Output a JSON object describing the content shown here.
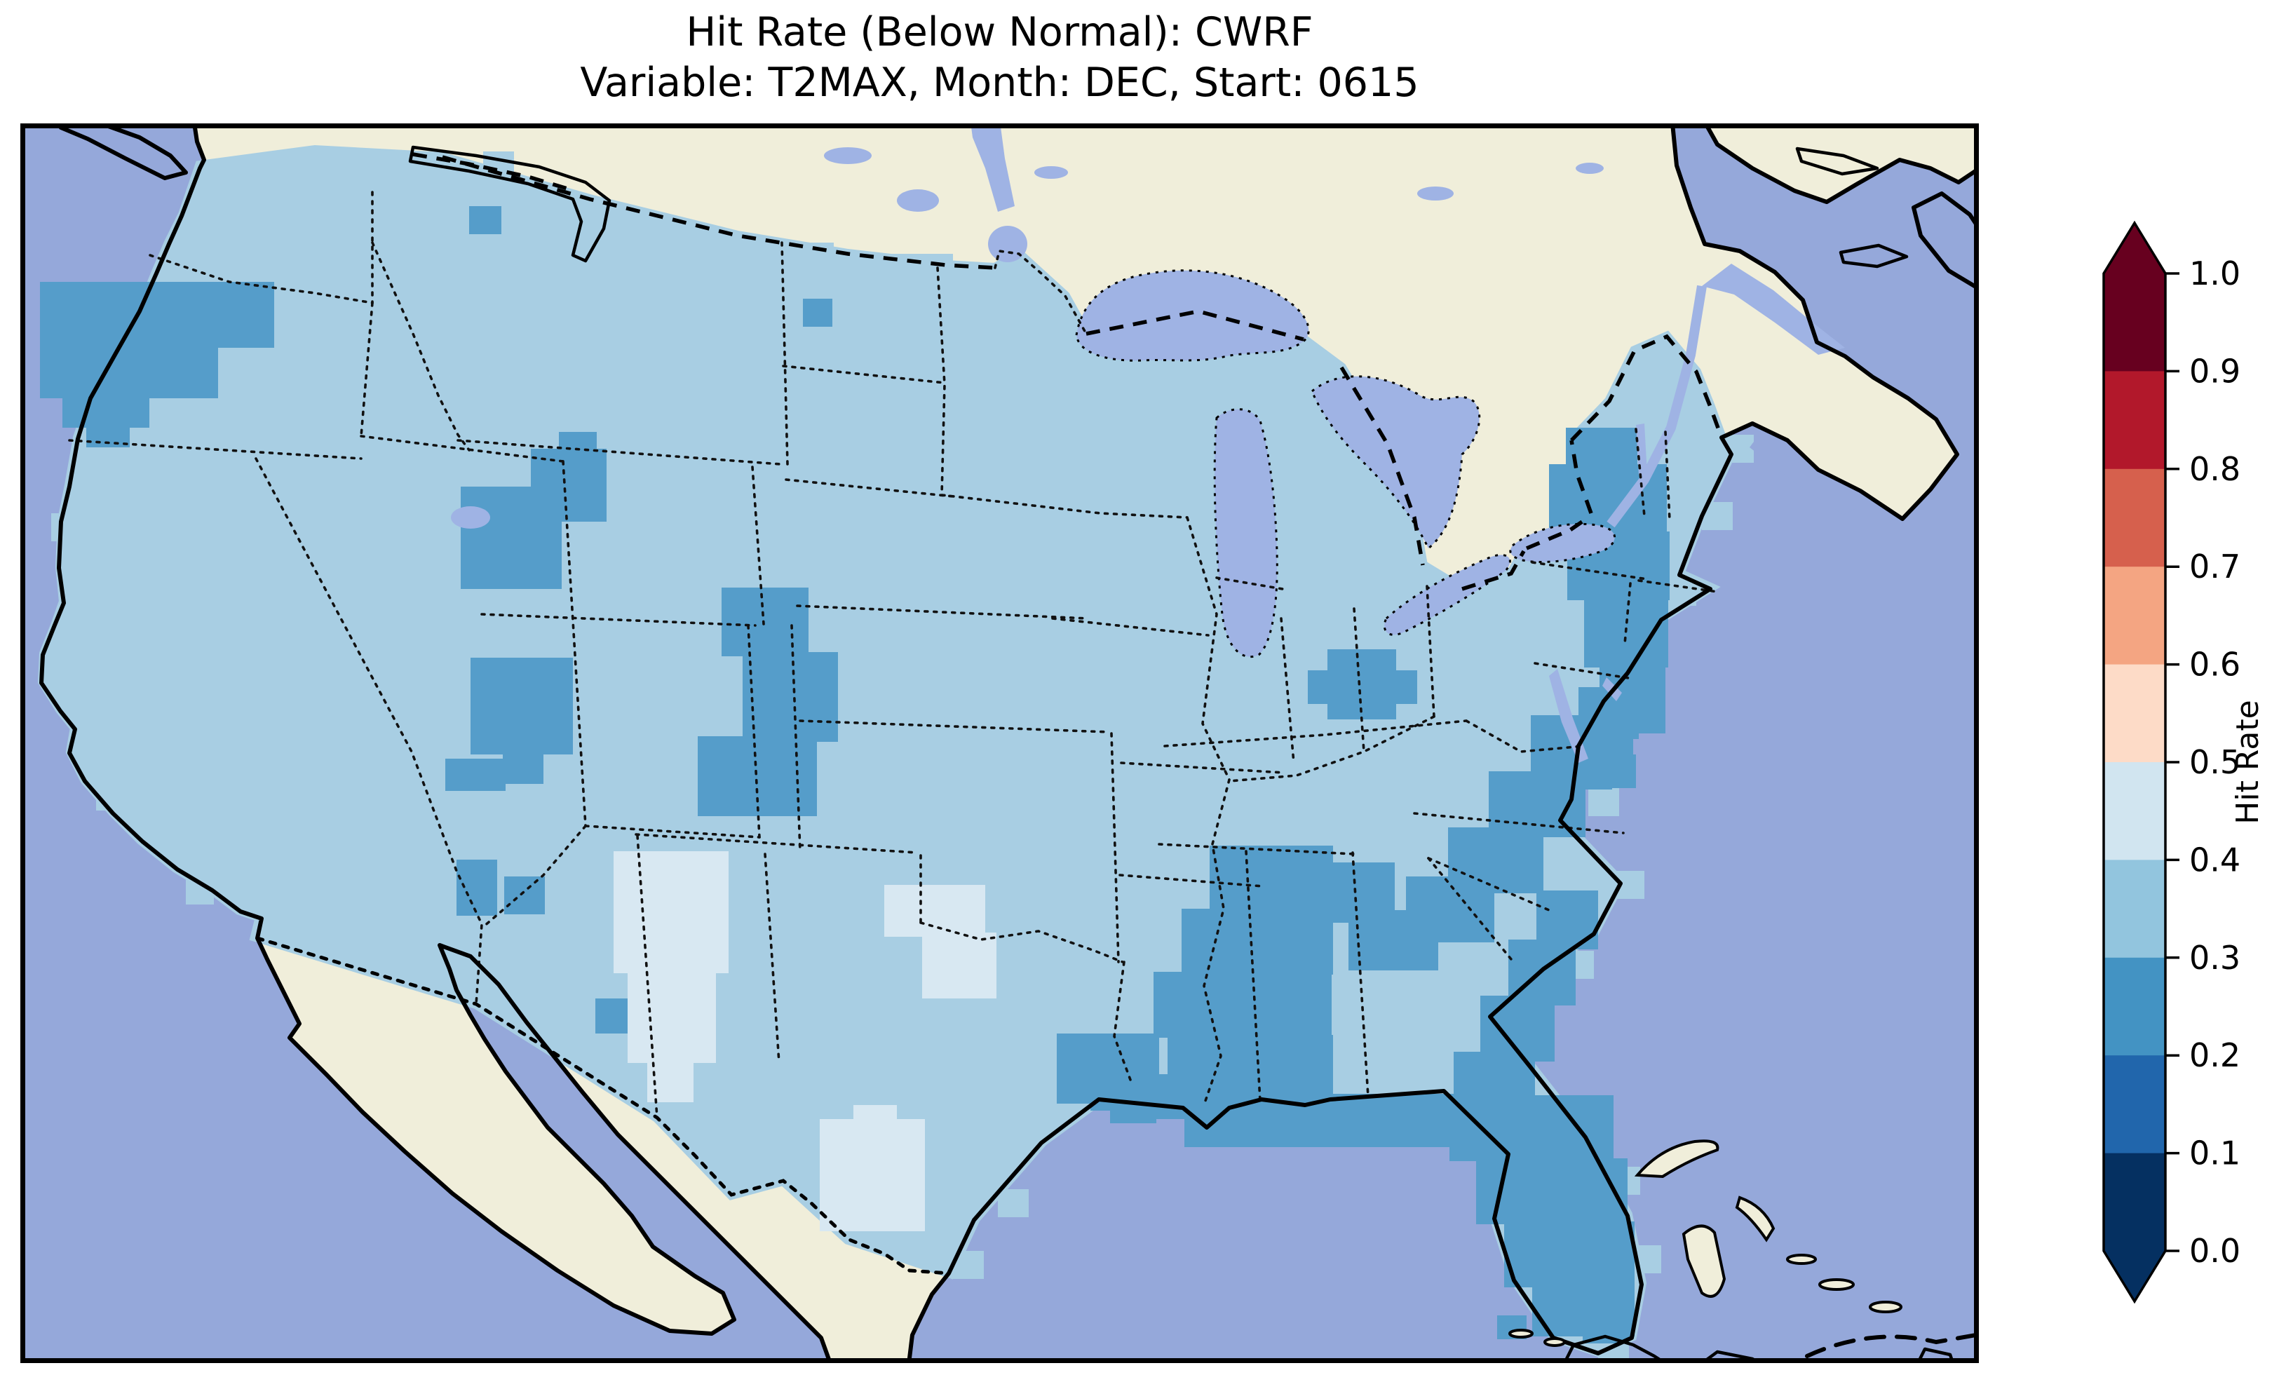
{
  "figure": {
    "title_line1": "Hit Rate (Below Normal): CWRF",
    "title_line2": "Variable: T2MAX, Month: DEC, Start: 0615",
    "background": "#ffffff",
    "text_color": "#000000"
  },
  "colorbar": {
    "label": "Hit Rate",
    "orientation": "vertical",
    "extend": "both",
    "tick_labels": [
      "1.0",
      "0.9",
      "0.8",
      "0.7",
      "0.6",
      "0.5",
      "0.4",
      "0.3",
      "0.2",
      "0.1",
      "0.0"
    ],
    "segments_top_to_bottom": [
      {
        "range": "0.9-1.0",
        "color": "#67001f"
      },
      {
        "range": "0.8-0.9",
        "color": "#b2182b"
      },
      {
        "range": "0.7-0.8",
        "color": "#d6604d"
      },
      {
        "range": "0.6-0.7",
        "color": "#f4a582"
      },
      {
        "range": "0.5-0.6",
        "color": "#fddbc7"
      },
      {
        "range": "0.4-0.5",
        "color": "#d1e5f0"
      },
      {
        "range": "0.3-0.4",
        "color": "#92c5de"
      },
      {
        "range": "0.2-0.3",
        "color": "#4393c3"
      },
      {
        "range": "0.1-0.2",
        "color": "#2166ac"
      },
      {
        "range": "0.0-0.1",
        "color": "#053061"
      }
    ],
    "arrow_over_color": "#67001f",
    "arrow_under_color": "#053061"
  },
  "map": {
    "feature_colors": {
      "ocean": "#95a8da",
      "land": "#f0eeda",
      "lakes": "#9fb3e4",
      "coastline": "#000000",
      "frame": "#000000"
    },
    "cell_colors": {
      "hr_04_05": "#d8e8f2",
      "hr_03_04": "#a8cee3",
      "hr_02_03": "#559dca"
    },
    "patches": [
      {
        "bin": "hr_02_03",
        "rects": [
          [
            28,
            226,
            334,
            94
          ],
          [
            28,
            318,
            254,
            74
          ],
          [
            60,
            390,
            124,
            44
          ],
          [
            94,
            432,
            62,
            30
          ],
          [
            640,
            118,
            46,
            40
          ],
          [
            728,
            464,
            108,
            104
          ],
          [
            768,
            440,
            54,
            28
          ],
          [
            1116,
            250,
            42,
            40
          ],
          [
            628,
            518,
            144,
            146
          ],
          [
            642,
            762,
            146,
            138
          ],
          [
            688,
            898,
            58,
            44
          ],
          [
            606,
            906,
            86,
            46
          ],
          [
            622,
            1050,
            58,
            80
          ],
          [
            1000,
            662,
            124,
            98
          ],
          [
            1030,
            754,
            136,
            128
          ],
          [
            966,
            874,
            170,
            114
          ],
          [
            1108,
            768,
            46,
            90
          ],
          [
            690,
            1074,
            58,
            54
          ],
          [
            820,
            1248,
            56,
            50
          ],
          [
            1864,
            750,
            98,
            100
          ],
          [
            1836,
            780,
            156,
            48
          ],
          [
            2204,
            434,
            102,
            56
          ],
          [
            2180,
            486,
            168,
            100
          ],
          [
            2206,
            582,
            146,
            98
          ],
          [
            2230,
            678,
            120,
            98
          ],
          [
            2252,
            772,
            94,
            98
          ],
          [
            2226,
            864,
            74,
            64
          ],
          [
            2210,
            904,
            60,
            46
          ],
          [
            2148,
            926,
            48,
            42
          ],
          [
            2250,
            900,
            54,
            48
          ],
          [
            2222,
            804,
            86,
            74
          ],
          [
            2154,
            844,
            118,
            94
          ],
          [
            2094,
            924,
            138,
            94
          ],
          [
            2036,
            1004,
            136,
            94
          ],
          [
            1976,
            1074,
            126,
            94
          ],
          [
            1894,
            1122,
            128,
            86
          ],
          [
            1862,
            1054,
            98,
            86
          ],
          [
            2162,
            1094,
            88,
            84
          ],
          [
            2122,
            1164,
            96,
            94
          ],
          [
            2082,
            1244,
            106,
            94
          ],
          [
            2044,
            1324,
            116,
            74
          ],
          [
            1696,
            1030,
            176,
            94
          ],
          [
            1656,
            1120,
            216,
            94
          ],
          [
            1616,
            1210,
            254,
            94
          ],
          [
            1636,
            1300,
            236,
            94
          ],
          [
            1596,
            1356,
            126,
            64
          ],
          [
            1554,
            1378,
            66,
            48
          ],
          [
            1478,
            1298,
            146,
            100
          ],
          [
            1526,
            1366,
            52,
            42
          ],
          [
            1660,
            1384,
            386,
            76
          ],
          [
            2038,
            1386,
            234,
            94
          ],
          [
            2076,
            1476,
            216,
            94
          ],
          [
            2116,
            1566,
            186,
            94
          ],
          [
            2156,
            1656,
            146,
            74
          ],
          [
            2228,
            1696,
            66,
            44
          ],
          [
            2106,
            1700,
            42,
            34
          ]
        ]
      },
      {
        "bin": "hr_04_05",
        "rects": [
          [
            846,
            1038,
            164,
            174
          ],
          [
            866,
            1208,
            126,
            132
          ],
          [
            894,
            1336,
            66,
            60
          ],
          [
            1232,
            1086,
            144,
            74
          ],
          [
            1286,
            1154,
            106,
            94
          ],
          [
            1140,
            1420,
            150,
            160
          ],
          [
            1188,
            1400,
            62,
            30
          ]
        ]
      }
    ],
    "overhang_cells": [
      [
        2428,
        444,
        44,
        40
      ],
      [
        2398,
        540,
        44,
        40
      ],
      [
        2346,
        648,
        44,
        40
      ],
      [
        2300,
        744,
        44,
        40
      ],
      [
        2252,
        848,
        44,
        40
      ],
      [
        2236,
        948,
        44,
        40
      ],
      [
        2272,
        1066,
        44,
        40
      ],
      [
        2200,
        1180,
        44,
        40
      ],
      [
        2120,
        1256,
        44,
        40
      ],
      [
        2168,
        1398,
        44,
        40
      ],
      [
        2266,
        1488,
        44,
        40
      ],
      [
        2296,
        1600,
        44,
        40
      ],
      [
        2250,
        1724,
        44,
        40
      ],
      [
        1330,
        1608,
        44,
        40
      ],
      [
        1394,
        1520,
        44,
        40
      ],
      [
        60,
        300,
        40,
        40
      ],
      [
        44,
        556,
        40,
        40
      ],
      [
        108,
        940,
        40,
        40
      ],
      [
        236,
        1074,
        40,
        40
      ],
      [
        660,
        40,
        44,
        36
      ],
      [
        2060,
        1360,
        44,
        40
      ],
      [
        1060,
        170,
        100,
        26
      ],
      [
        1240,
        186,
        90,
        22
      ]
    ]
  },
  "chart_data": {
    "type": "heatmap",
    "title": "Hit Rate (Below Normal): CWRF",
    "subtitle": "Variable: T2MAX, Month: DEC, Start: 0615",
    "colorbar_label": "Hit Rate",
    "colorbar_range": [
      0.0,
      1.0
    ],
    "colorbar_tick_step": 0.1,
    "palette": "RdBu_r, 10 discrete bins, extend arrows both ends",
    "legend_position": "right",
    "regions": [
      {
        "region": "Most of the contiguous US",
        "hit_rate_bin": [
          0.3,
          0.4
        ]
      },
      {
        "region": "Western Oregon",
        "hit_rate_bin": [
          0.2,
          0.3
        ]
      },
      {
        "region": "Southern Idaho / northern Nevada patch",
        "hit_rate_bin": [
          0.2,
          0.3
        ]
      },
      {
        "region": "Central Nevada-Utah patches",
        "hit_rate_bin": [
          0.2,
          0.3
        ]
      },
      {
        "region": "Eastern Utah / western Colorado band",
        "hit_rate_bin": [
          0.2,
          0.3
        ]
      },
      {
        "region": "Central Montana patch and spots near the Canadian border",
        "hit_rate_bin": [
          0.2,
          0.3
        ]
      },
      {
        "region": "Small Arizona / New Mexico cells",
        "hit_rate_bin": [
          0.2,
          0.3
        ]
      },
      {
        "region": "Indiana-Ohio patch",
        "hit_rate_bin": [
          0.2,
          0.3
        ]
      },
      {
        "region": "Eastern upstate New York through New Jersey",
        "hit_rate_bin": [
          0.2,
          0.3
        ]
      },
      {
        "region": "Appalachians: Virginia / West Virginia / Carolinas band",
        "hit_rate_bin": [
          0.2,
          0.3
        ]
      },
      {
        "region": "Northern Georgia / western South Carolina",
        "hit_rate_bin": [
          0.2,
          0.3
        ]
      },
      {
        "region": "Mississippi, Alabama and Louisiana Gulf Coast",
        "hit_rate_bin": [
          0.2,
          0.3
        ]
      },
      {
        "region": "Florida peninsula, panhandle coast and SE coastal strip",
        "hit_rate_bin": [
          0.2,
          0.3
        ]
      },
      {
        "region": "West Texas / SE New Mexico patch",
        "hit_rate_bin": [
          0.4,
          0.5
        ]
      },
      {
        "region": "Red River area (Oklahoma-Texas border)",
        "hit_rate_bin": [
          0.4,
          0.5
        ]
      },
      {
        "region": "Central Texas patch",
        "hit_rate_bin": [
          0.4,
          0.5
        ]
      }
    ]
  }
}
